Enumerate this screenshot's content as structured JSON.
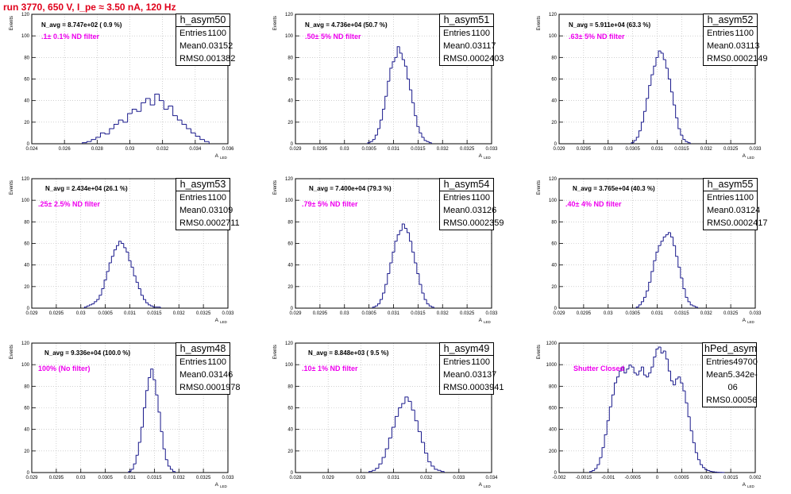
{
  "run_title": "run 3770,   650 V, I_pe ≈ 3.50 nA, 120 Hz",
  "labels": {
    "events": "Events",
    "x_axis": "A",
    "x_axis_sub": "LED"
  },
  "colors": {
    "title": "#e0001b",
    "hist": "#1a1a8c",
    "annotation": "#ee00ee",
    "grid": "#b4b4b4"
  },
  "chart_data": [
    {
      "type": "bar",
      "name": "h_asym50",
      "n_avg": "N_avg = 8.747e+02 ( 0.9 %)",
      "filter": ".1± 0.1% ND filter",
      "stats": {
        "entries": "1100",
        "mean": "0.03152",
        "rms": "0.001382"
      },
      "xlim": [
        0.024,
        0.037
      ],
      "ylim": [
        0,
        120
      ],
      "xticks": [
        "0.024",
        "0.026",
        "0.028",
        "0.03",
        "0.032",
        "0.034",
        "0.036"
      ],
      "yticks": [
        "0",
        "20",
        "40",
        "60",
        "80",
        "100",
        "120"
      ],
      "x": [
        0.0275,
        0.0278,
        0.0281,
        0.0284,
        0.0287,
        0.029,
        0.0293,
        0.0296,
        0.0299,
        0.0302,
        0.0305,
        0.0308,
        0.0311,
        0.0314,
        0.0317,
        0.032,
        0.0323,
        0.0326,
        0.0329,
        0.0332,
        0.0335,
        0.0338,
        0.0341,
        0.0344,
        0.0347,
        0.035,
        0.0353,
        0.0356
      ],
      "values": [
        1,
        2,
        4,
        6,
        10,
        9,
        14,
        18,
        22,
        20,
        28,
        32,
        30,
        38,
        42,
        36,
        46,
        40,
        32,
        35,
        26,
        22,
        18,
        14,
        10,
        7,
        4,
        2
      ]
    },
    {
      "type": "bar",
      "name": "h_asym51",
      "n_avg": "N_avg = 4.736e+04 (50.7 %)",
      "filter": ".50± 5% ND filter",
      "stats": {
        "entries": "1100",
        "mean": "0.03117",
        "rms": "0.0002403"
      },
      "xlim": [
        0.029,
        0.033
      ],
      "ylim": [
        0,
        120
      ],
      "xticks": [
        "0.029",
        "0.0295",
        "0.03",
        "0.0305",
        "0.031",
        "0.0315",
        "0.032",
        "0.0325",
        "0.033"
      ],
      "yticks": [
        "0",
        "20",
        "40",
        "60",
        "80",
        "100",
        "120"
      ],
      "x": [
        0.0305,
        0.03055,
        0.0306,
        0.03065,
        0.0307,
        0.03075,
        0.0308,
        0.03085,
        0.0309,
        0.03095,
        0.031,
        0.03105,
        0.0311,
        0.03115,
        0.0312,
        0.03125,
        0.0313,
        0.03135,
        0.0314,
        0.03145,
        0.0315,
        0.03155,
        0.0316,
        0.03165,
        0.0317,
        0.03175
      ],
      "values": [
        1,
        2,
        4,
        8,
        14,
        22,
        32,
        44,
        58,
        70,
        76,
        80,
        90,
        84,
        78,
        72,
        60,
        50,
        38,
        26,
        16,
        10,
        6,
        3,
        2,
        1
      ]
    },
    {
      "type": "bar",
      "name": "h_asym52",
      "n_avg": "N_avg = 5.911e+04 (63.3 %)",
      "filter": ".63± 5% ND filter",
      "stats": {
        "entries": "1100",
        "mean": "0.03113",
        "rms": "0.0002149"
      },
      "xlim": [
        0.029,
        0.033
      ],
      "ylim": [
        0,
        120
      ],
      "xticks": [
        "0.029",
        "0.0295",
        "0.03",
        "0.0305",
        "0.031",
        "0.0315",
        "0.032",
        "0.0325",
        "0.033"
      ],
      "yticks": [
        "0",
        "20",
        "40",
        "60",
        "80",
        "100",
        "120"
      ],
      "x": [
        0.0305,
        0.03055,
        0.0306,
        0.03065,
        0.0307,
        0.03075,
        0.0308,
        0.03085,
        0.0309,
        0.03095,
        0.031,
        0.03105,
        0.0311,
        0.03115,
        0.0312,
        0.03125,
        0.0313,
        0.03135,
        0.0314,
        0.03145,
        0.0315,
        0.03155,
        0.0316,
        0.03165
      ],
      "values": [
        1,
        3,
        6,
        12,
        20,
        30,
        42,
        54,
        64,
        72,
        80,
        86,
        84,
        78,
        70,
        60,
        48,
        36,
        24,
        14,
        8,
        4,
        2,
        1
      ]
    },
    {
      "type": "bar",
      "name": "h_asym53",
      "n_avg": "N_avg = 2.434e+04 (26.1 %)",
      "filter": ".25± 2.5% ND filter",
      "stats": {
        "entries": "1100",
        "mean": "0.03109",
        "rms": "0.0002711"
      },
      "xlim": [
        0.029,
        0.033
      ],
      "ylim": [
        0,
        120
      ],
      "xticks": [
        "0.029",
        "0.0295",
        "0.03",
        "0.0305",
        "0.031",
        "0.0315",
        "0.032",
        "0.0325",
        "0.033"
      ],
      "yticks": [
        "0",
        "20",
        "40",
        "60",
        "80",
        "100",
        "120"
      ],
      "x": [
        0.0301,
        0.03015,
        0.0302,
        0.03025,
        0.0303,
        0.03035,
        0.0304,
        0.03045,
        0.0305,
        0.03055,
        0.0306,
        0.03065,
        0.0307,
        0.03075,
        0.0308,
        0.03085,
        0.0309,
        0.03095,
        0.031,
        0.03105,
        0.0311,
        0.03115,
        0.0312,
        0.03125,
        0.0313,
        0.03135,
        0.0314,
        0.03145,
        0.0315,
        0.03155,
        0.0316
      ],
      "values": [
        1,
        2,
        3,
        4,
        6,
        8,
        12,
        18,
        26,
        34,
        42,
        48,
        54,
        58,
        62,
        60,
        56,
        52,
        44,
        38,
        30,
        24,
        18,
        12,
        8,
        5,
        3,
        2,
        1,
        1,
        1
      ]
    },
    {
      "type": "bar",
      "name": "h_asym54",
      "n_avg": "N_avg = 7.400e+04 (79.3 %)",
      "filter": ".79± 5% ND filter",
      "stats": {
        "entries": "1100",
        "mean": "0.03126",
        "rms": "0.0002359"
      },
      "xlim": [
        0.029,
        0.033
      ],
      "ylim": [
        0,
        120
      ],
      "xticks": [
        "0.029",
        "0.0295",
        "0.03",
        "0.0305",
        "0.031",
        "0.0315",
        "0.032",
        "0.0325",
        "0.033"
      ],
      "yticks": [
        "0",
        "20",
        "40",
        "60",
        "80",
        "100",
        "120"
      ],
      "x": [
        0.0306,
        0.03065,
        0.0307,
        0.03075,
        0.0308,
        0.03085,
        0.0309,
        0.03095,
        0.031,
        0.03105,
        0.0311,
        0.03115,
        0.0312,
        0.03125,
        0.0313,
        0.03135,
        0.0314,
        0.03145,
        0.0315,
        0.03155,
        0.0316,
        0.03165,
        0.0317,
        0.03175,
        0.0318
      ],
      "values": [
        1,
        2,
        4,
        8,
        14,
        22,
        32,
        42,
        52,
        62,
        68,
        72,
        78,
        74,
        70,
        62,
        52,
        42,
        32,
        22,
        14,
        8,
        4,
        2,
        1
      ]
    },
    {
      "type": "bar",
      "name": "h_asym55",
      "n_avg": "N_avg = 3.765e+04 (40.3 %)",
      "filter": ".40± 4% ND filter",
      "stats": {
        "entries": "1100",
        "mean": "0.03124",
        "rms": "0.0002417"
      },
      "xlim": [
        0.029,
        0.033
      ],
      "ylim": [
        0,
        120
      ],
      "xticks": [
        "0.029",
        "0.0295",
        "0.03",
        "0.0305",
        "0.031",
        "0.0315",
        "0.032",
        "0.0325",
        "0.033"
      ],
      "yticks": [
        "0",
        "20",
        "40",
        "60",
        "80",
        "100",
        "120"
      ],
      "x": [
        0.0306,
        0.03065,
        0.0307,
        0.03075,
        0.0308,
        0.03085,
        0.0309,
        0.03095,
        0.031,
        0.03105,
        0.0311,
        0.03115,
        0.0312,
        0.03125,
        0.0313,
        0.03135,
        0.0314,
        0.03145,
        0.0315,
        0.03155,
        0.0316,
        0.03165,
        0.0317,
        0.03175,
        0.0318
      ],
      "values": [
        1,
        3,
        6,
        10,
        16,
        24,
        34,
        44,
        52,
        58,
        62,
        66,
        68,
        70,
        66,
        58,
        48,
        38,
        28,
        18,
        10,
        6,
        3,
        2,
        1
      ]
    },
    {
      "type": "bar",
      "name": "h_asym48",
      "n_avg": "N_avg = 9.336e+04 (100.0 %)",
      "filter": "100% (No filter)",
      "stats": {
        "entries": "1100",
        "mean": "0.03146",
        "rms": "0.0001978"
      },
      "xlim": [
        0.029,
        0.033
      ],
      "ylim": [
        0,
        120
      ],
      "xticks": [
        "0.029",
        "0.0295",
        "0.03",
        "0.0305",
        "0.031",
        "0.0315",
        "0.032",
        "0.0325",
        "0.033"
      ],
      "yticks": [
        "0",
        "20",
        "40",
        "60",
        "80",
        "100",
        "120"
      ],
      "x": [
        0.031,
        0.03105,
        0.0311,
        0.03115,
        0.0312,
        0.03125,
        0.0313,
        0.03135,
        0.0314,
        0.03145,
        0.0315,
        0.03155,
        0.0316,
        0.03165,
        0.0317,
        0.03175,
        0.0318,
        0.03185,
        0.0319
      ],
      "values": [
        1,
        3,
        8,
        16,
        28,
        42,
        60,
        76,
        88,
        96,
        86,
        72,
        56,
        38,
        22,
        12,
        6,
        3,
        1
      ]
    },
    {
      "type": "bar",
      "name": "h_asym49",
      "n_avg": "N_avg = 8.848e+03 ( 9.5 %)",
      "filter": ".10± 1% ND filter",
      "stats": {
        "entries": "1100",
        "mean": "0.03137",
        "rms": "0.0003941"
      },
      "xlim": [
        0.028,
        0.034
      ],
      "ylim": [
        0,
        120
      ],
      "xticks": [
        "0.028",
        "0.029",
        "0.03",
        "0.031",
        "0.032",
        "0.033",
        "0.034"
      ],
      "yticks": [
        "0",
        "20",
        "40",
        "60",
        "80",
        "100",
        "120"
      ],
      "x": [
        0.0303,
        0.0304,
        0.0305,
        0.0306,
        0.0307,
        0.0308,
        0.0309,
        0.031,
        0.0311,
        0.0312,
        0.0313,
        0.0314,
        0.0315,
        0.0316,
        0.0317,
        0.0318,
        0.0319,
        0.032,
        0.0321,
        0.0322,
        0.0323,
        0.0324,
        0.0325
      ],
      "values": [
        1,
        2,
        4,
        8,
        14,
        22,
        32,
        42,
        52,
        60,
        64,
        70,
        66,
        58,
        48,
        38,
        28,
        18,
        10,
        6,
        3,
        2,
        1
      ]
    },
    {
      "type": "bar",
      "name": "hPed_asym",
      "n_avg": "",
      "filter": "Shutter Closed",
      "stats": {
        "entries": "49700",
        "mean": "5.342e-06",
        "rms": "0.00056"
      },
      "xlim": [
        -0.002,
        0.002
      ],
      "ylim": [
        0,
        1300
      ],
      "xticks": [
        "-0.002",
        "-0.0015",
        "-0.001",
        "-0.0005",
        "0",
        "0.0005",
        "0.001",
        "0.0015",
        "0.002"
      ],
      "yticks": [
        "0",
        "200",
        "400",
        "600",
        "800",
        "1000",
        "1200"
      ],
      "x": [
        -0.00135,
        -0.0013,
        -0.00125,
        -0.0012,
        -0.00115,
        -0.0011,
        -0.00105,
        -0.001,
        -0.00095,
        -0.0009,
        -0.00085,
        -0.0008,
        -0.00075,
        -0.0007,
        -0.00065,
        -0.0006,
        -0.00055,
        -0.0005,
        -0.00045,
        -0.0004,
        -0.00035,
        -0.0003,
        -0.00025,
        -0.0002,
        -0.00015,
        -0.0001,
        -5e-05,
        0,
        5e-05,
        0.0001,
        0.00015,
        0.0002,
        0.00025,
        0.0003,
        0.00035,
        0.0004,
        0.00045,
        0.0005,
        0.00055,
        0.0006,
        0.00065,
        0.0007,
        0.00075,
        0.0008,
        0.00085,
        0.0009,
        0.00095,
        0.001,
        0.00105,
        0.0011,
        0.00115,
        0.0012,
        0.00125,
        0.0013,
        0.00135
      ],
      "values": [
        10,
        20,
        40,
        80,
        150,
        250,
        380,
        520,
        660,
        780,
        900,
        960,
        1020,
        1060,
        1000,
        1040,
        1080,
        1060,
        1000,
        980,
        1020,
        1060,
        980,
        960,
        1000,
        1060,
        1160,
        1240,
        1260,
        1200,
        1220,
        1140,
        1020,
        920,
        880,
        940,
        960,
        900,
        820,
        700,
        560,
        420,
        300,
        200,
        130,
        80,
        50,
        30,
        20,
        12,
        8,
        5,
        3,
        2,
        1
      ]
    }
  ]
}
